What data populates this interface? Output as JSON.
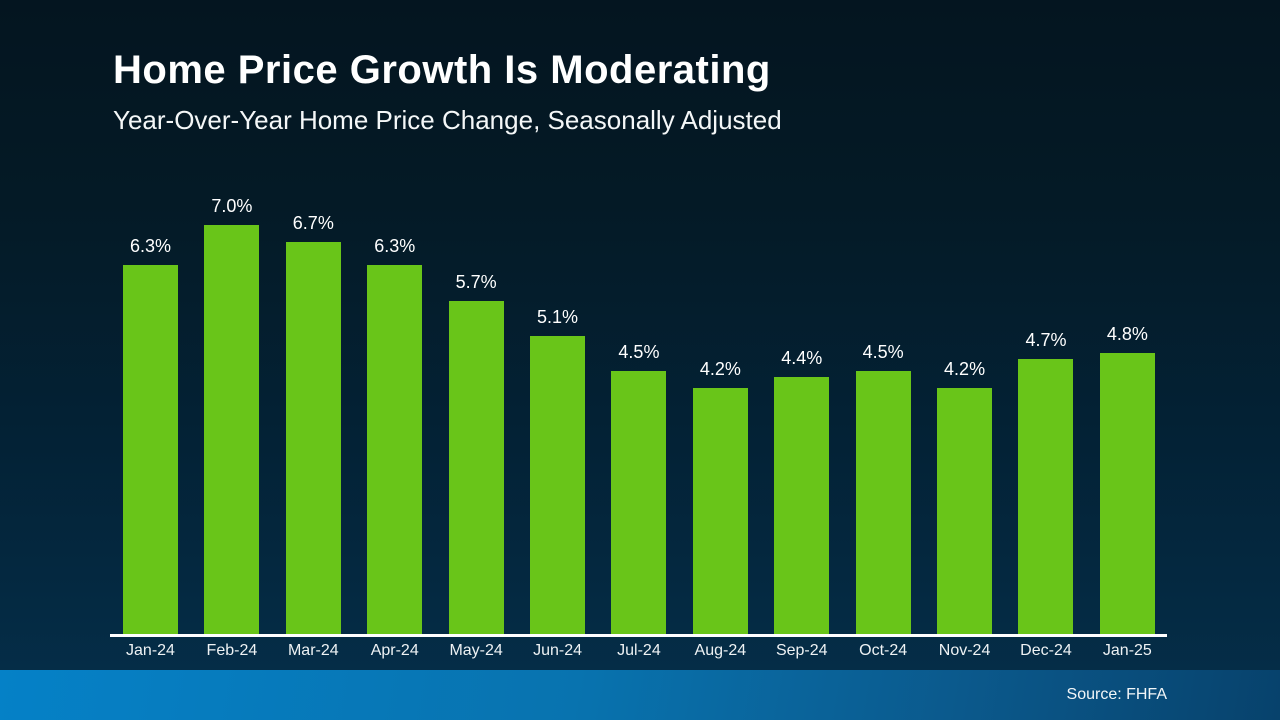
{
  "slide": {
    "title": "Home Price Growth Is Moderating",
    "subtitle": "Year-Over-Year Home Price Change, Seasonally Adjusted",
    "source": "Source: FHFA"
  },
  "colors": {
    "bar": "#69C519",
    "background_top": "#041520",
    "background_bottom": "#05304B",
    "footer_gradient_left": "#0581C7",
    "footer_gradient_right": "#07426C",
    "axis": "#FFFFFF"
  },
  "chart_data": {
    "type": "bar",
    "title": "Home Price Growth Is Moderating",
    "subtitle": "Year-Over-Year Home Price Change, Seasonally Adjusted",
    "categories": [
      "Jan-24",
      "Feb-24",
      "Mar-24",
      "Apr-24",
      "May-24",
      "Jun-24",
      "Jul-24",
      "Aug-24",
      "Sep-24",
      "Oct-24",
      "Nov-24",
      "Dec-24",
      "Jan-25"
    ],
    "values": [
      6.3,
      7.0,
      6.7,
      6.3,
      5.7,
      5.1,
      4.5,
      4.2,
      4.4,
      4.5,
      4.2,
      4.7,
      4.8
    ],
    "value_labels": [
      "6.3%",
      "7.0%",
      "6.7%",
      "6.3%",
      "5.7%",
      "5.1%",
      "4.5%",
      "4.2%",
      "4.4%",
      "4.5%",
      "4.2%",
      "4.7%",
      "4.8%"
    ],
    "xlabel": "",
    "ylabel": "",
    "ylim": [
      0,
      7.0
    ],
    "grid": false,
    "legend": false,
    "data_labels": "above-bars",
    "bar_color": "#69C519",
    "source": "Source: FHFA"
  }
}
